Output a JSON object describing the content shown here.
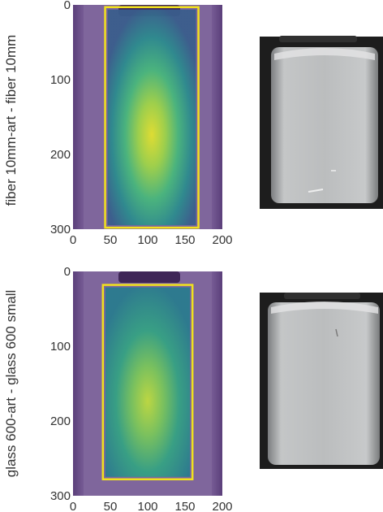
{
  "chart_data": [
    {
      "type": "heatmap",
      "side_label": "fiber 10mm-art - fiber 10mm",
      "x_ticks": [
        "0",
        "50",
        "100",
        "150",
        "200"
      ],
      "y_ticks": [
        "0",
        "100",
        "200",
        "300"
      ],
      "xlim": [
        0,
        200
      ],
      "ylim": [
        300,
        0
      ],
      "region": {
        "x0": 43,
        "x1": 168,
        "y0": 3,
        "y1": 298
      },
      "hotspot": {
        "x": 104,
        "y": 165
      },
      "colors": {
        "background": "#6a4e89",
        "box": "#f1e11d"
      }
    },
    {
      "type": "heatmap",
      "side_label": "glass 600-art - glass 600 small",
      "x_ticks": [
        "0",
        "50",
        "100",
        "150",
        "200"
      ],
      "y_ticks": [
        "0",
        "100",
        "200",
        "300"
      ],
      "xlim": [
        0,
        200
      ],
      "ylim": [
        300,
        0
      ],
      "region": {
        "x0": 40,
        "x1": 160,
        "y0": 18,
        "y1": 278
      },
      "hotspot": {
        "x": 100,
        "y": 175
      },
      "colors": {
        "background": "#6a4e89",
        "box": "#f1e11d"
      }
    }
  ],
  "photos": [
    {
      "name": "vial-photo-top",
      "colors": {
        "bg": "#1d1d1d",
        "body": "#b9bbbc"
      }
    },
    {
      "name": "vial-photo-bottom",
      "colors": {
        "bg": "#1d1d1d",
        "body": "#b9bbbc"
      }
    }
  ]
}
